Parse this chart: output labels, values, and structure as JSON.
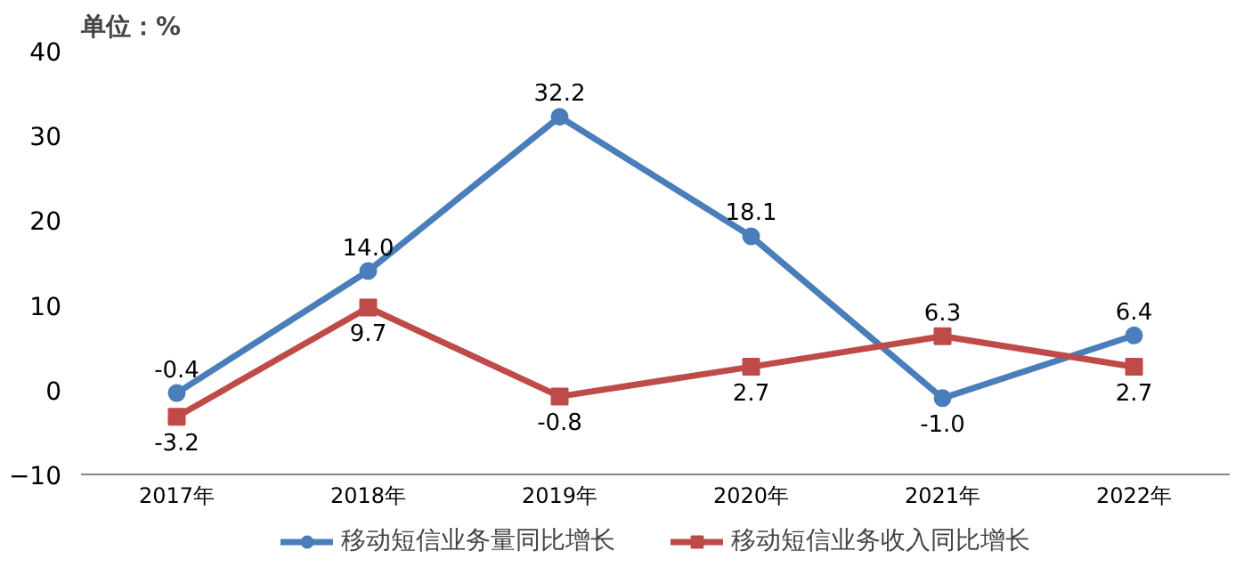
{
  "chart_data": {
    "type": "line",
    "annotations": [
      "单位：%"
    ],
    "categories": [
      "2017年",
      "2018年",
      "2019年",
      "2020年",
      "2021年",
      "2022年"
    ],
    "series": [
      {
        "name": "移动短信业务量同比增长",
        "color": "#4a7ebb",
        "marker": "circle",
        "values": [
          -0.4,
          14.0,
          32.2,
          18.1,
          -1.0,
          6.4
        ],
        "value_labels": [
          "-0.4",
          "14.0",
          "32.2",
          "18.1",
          "-1.0",
          "6.4"
        ]
      },
      {
        "name": "移动短信业务收入同比增长",
        "color": "#be4b48",
        "marker": "square",
        "values": [
          -3.2,
          9.7,
          -0.8,
          2.7,
          6.3,
          2.7
        ],
        "value_labels": [
          "-3.2",
          "9.7",
          "-0.8",
          "2.7",
          "6.3",
          "2.7"
        ]
      }
    ],
    "ylim": [
      -10,
      40
    ],
    "yticks": [
      -10,
      0,
      10,
      20,
      30,
      40
    ],
    "grid": false,
    "legend": "bottom",
    "line_style": "solid"
  }
}
